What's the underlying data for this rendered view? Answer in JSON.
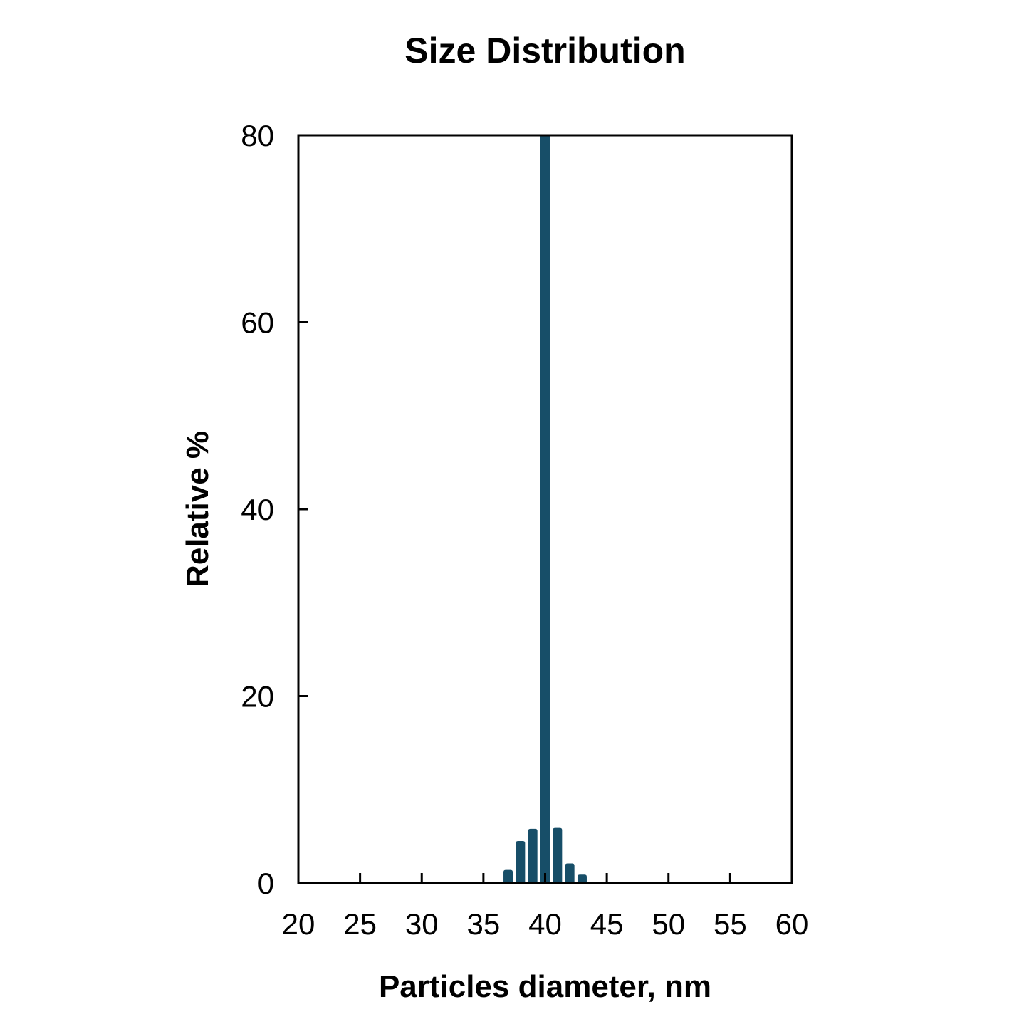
{
  "chart_data": {
    "type": "bar",
    "title": "Size Distribution",
    "xlabel": "Particles diameter, nm",
    "ylabel": "Relative %",
    "x": [
      37,
      38,
      39,
      40,
      41,
      42,
      43
    ],
    "values": [
      1.4,
      4.5,
      5.8,
      80,
      5.9,
      2.1,
      0.9
    ],
    "xlim": [
      20,
      60
    ],
    "ylim": [
      0,
      80
    ],
    "x_ticks": [
      20,
      25,
      30,
      35,
      40,
      45,
      50,
      55,
      60
    ],
    "y_ticks": [
      0,
      20,
      40,
      60,
      80
    ],
    "bar_width_x": 0.75,
    "bar_color": "#174e68",
    "axis_color": "#000000",
    "background": "#ffffff",
    "grid": false,
    "legend": false,
    "annotations": [
      "bar at 40 nm reaches the y-axis maximum and is clipped at 80"
    ]
  }
}
